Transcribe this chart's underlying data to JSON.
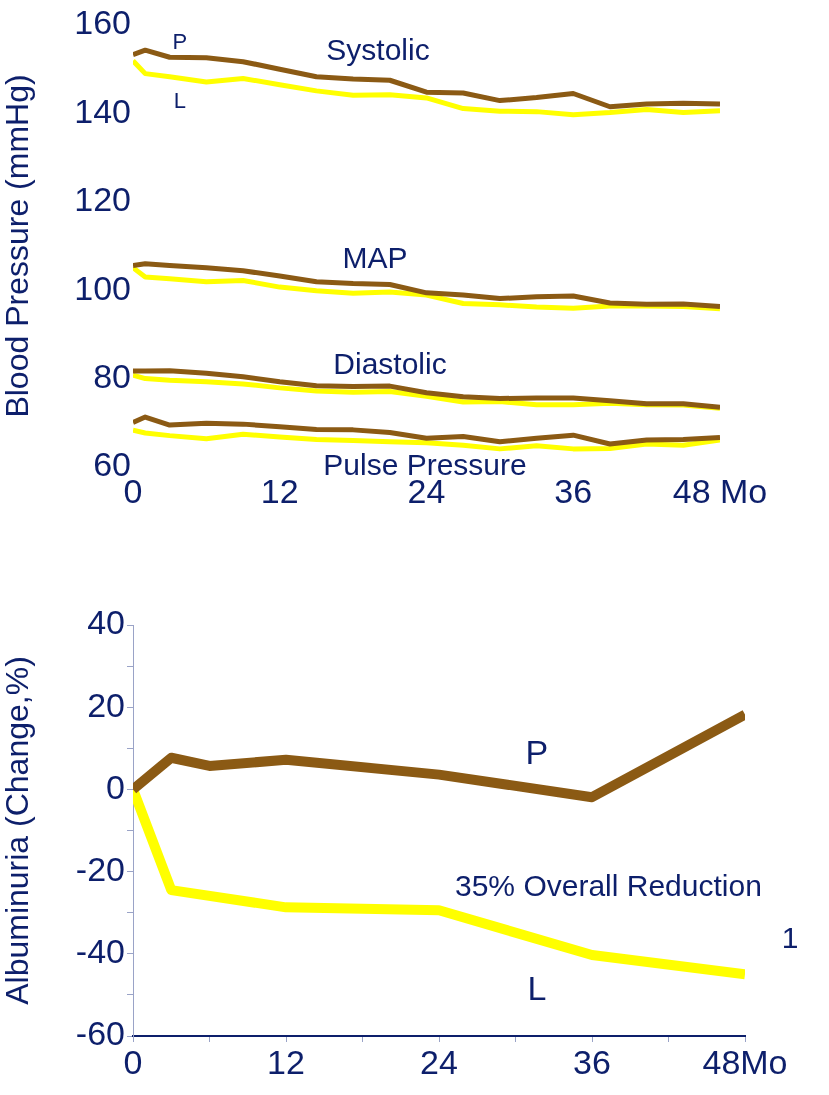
{
  "chart_data": [
    {
      "type": "line",
      "ylabel": "Blood Pressure (mmHg)",
      "xlim": [
        0,
        48
      ],
      "ylim": [
        60,
        160
      ],
      "xticks": [
        0,
        12,
        24,
        36,
        {
          "value": 48,
          "label": "48 Mo"
        }
      ],
      "yticks": [
        60,
        80,
        100,
        120,
        140,
        160
      ],
      "x": [
        0,
        1,
        3,
        6,
        9,
        12,
        15,
        18,
        21,
        24,
        27,
        30,
        33,
        36,
        39,
        42,
        45,
        48
      ],
      "series": [
        {
          "name": "P",
          "color": "#8b5a14",
          "values": [
            153.3,
            154.3,
            152.7,
            152.6,
            151.7,
            150,
            148.3,
            147.8,
            147.5,
            144.8,
            144.6,
            142.9,
            143.6,
            144.5,
            141.5,
            142.1,
            142.3,
            142.1
          ]
        },
        {
          "name": "L",
          "color": "#ffff00",
          "values": [
            151.9,
            149,
            148.3,
            147.1,
            147.9,
            146.5,
            145.1,
            144.1,
            144.2,
            143.5,
            141.1,
            140.5,
            140.4,
            139.7,
            140.2,
            140.9,
            140.2,
            140.6
          ]
        },
        {
          "color": "#8b5a14",
          "values": [
            105.6,
            106,
            105.6,
            105.1,
            104.4,
            103.2,
            101.9,
            101.5,
            101.3,
            99.4,
            98.9,
            98.1,
            98.5,
            98.7,
            97.1,
            96.8,
            96.9,
            96.3
          ]
        },
        {
          "color": "#ffff00",
          "values": [
            105.1,
            103,
            102.6,
            101.9,
            102.2,
            100.7,
            99.9,
            99.3,
            99.6,
            98.9,
            97,
            96.7,
            96.2,
            95.9,
            96.4,
            96.4,
            96.3,
            95.8
          ]
        },
        {
          "color": "#8b5a14",
          "values": [
            81.7,
            81.7,
            81.8,
            81.2,
            80.4,
            79.3,
            78.4,
            78.2,
            78.3,
            76.8,
            75.9,
            75.5,
            75.6,
            75.6,
            75,
            74.3,
            74.3,
            73.5
          ]
        },
        {
          "color": "#ffff00",
          "values": [
            80.8,
            80,
            79.6,
            79.3,
            78.8,
            77.9,
            77.2,
            76.9,
            77.1,
            76,
            74.7,
            74.8,
            74.1,
            74.1,
            74.4,
            74.1,
            74,
            73.3
          ]
        },
        {
          "color": "#8b5a14",
          "values": [
            70.1,
            71.3,
            69.5,
            69.9,
            69.7,
            69.1,
            68.5,
            68.4,
            67.8,
            66.5,
            66.9,
            65.7,
            66.5,
            67.2,
            65.2,
            66.1,
            66.2,
            66.7
          ]
        },
        {
          "color": "#ffff00",
          "values": [
            68.3,
            67.7,
            67.1,
            66.4,
            67.4,
            66.8,
            66.2,
            66,
            65.7,
            65.5,
            64.9,
            64.1,
            64.8,
            64.1,
            64.2,
            65.2,
            64.9,
            66.1
          ]
        }
      ],
      "annotations": [
        "Systolic",
        "MAP",
        "Diastolic",
        "Pulse Pressure"
      ],
      "grid": false,
      "legend": false,
      "marker": "none",
      "line_style": "solid"
    },
    {
      "type": "line",
      "ylabel": "Albuminuria (Change,%)",
      "xlim": [
        0,
        48
      ],
      "ylim": [
        -60,
        40
      ],
      "xticks": [
        0,
        {
          "value": 6,
          "label": null
        },
        12,
        {
          "value": 18,
          "label": null
        },
        24,
        {
          "value": 30,
          "label": null
        },
        36,
        {
          "value": 42,
          "label": null
        },
        {
          "value": 48,
          "label": "48Mo"
        }
      ],
      "yticks": [
        -60,
        {
          "value": -50,
          "label": null
        },
        -40,
        {
          "value": -30,
          "label": null
        },
        -20,
        {
          "value": -10,
          "label": null
        },
        0,
        {
          "value": 10,
          "label": null
        },
        20,
        {
          "value": 30,
          "label": null
        },
        40
      ],
      "series": [
        {
          "name": "P",
          "color": "#8b5a14",
          "x": [
            0,
            3,
            6,
            12,
            24,
            36,
            48
          ],
          "values": [
            0,
            7.7,
            5.7,
            7.2,
            3.6,
            -1.9,
            18.2
          ]
        },
        {
          "name": "L",
          "color": "#ffff00",
          "x": [
            0,
            3,
            12,
            24,
            36,
            48
          ],
          "values": [
            0,
            -24.5,
            -28.7,
            -29.4,
            -40.3,
            -45
          ]
        }
      ],
      "annotations": [
        "35% Overall Reduction",
        "1"
      ],
      "grid": false,
      "legend": false,
      "marker": "none",
      "line_style": "solid"
    }
  ]
}
